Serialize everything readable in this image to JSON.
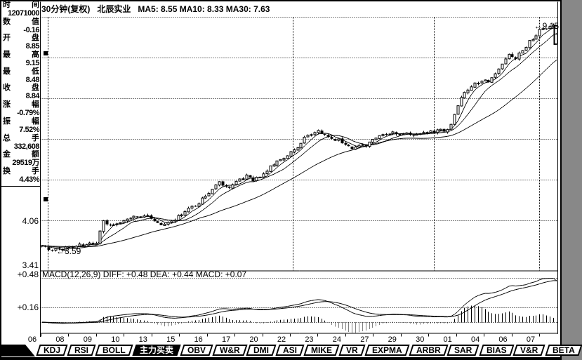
{
  "window": {
    "bg": "#ffffff",
    "fg": "#000000"
  },
  "header": {
    "period": "30分钟(复权)",
    "stock": "北辰实业",
    "ma_values": "MA5: 8.55 MA10: 8.33 MA30: 7.63"
  },
  "sidebar": {
    "rows": [
      {
        "label": "时间",
        "value": "12071000"
      },
      {
        "label": "数值",
        "value": "-0.16"
      },
      {
        "label": "开盘",
        "value": "8.85"
      },
      {
        "label": "最高",
        "value": "9.15"
      },
      {
        "label": "最低",
        "value": "8.48"
      },
      {
        "label": "收盘",
        "value": "8.84"
      },
      {
        "label": "涨幅",
        "value": "-0.79%"
      },
      {
        "label": "振幅",
        "value": "7.52%"
      },
      {
        "label": "总手",
        "value": "332,608"
      },
      {
        "label": "金额",
        "value": "29519万"
      },
      {
        "label": "换手",
        "value": "4.43%"
      }
    ]
  },
  "axis": {
    "price_labels": [
      "4.06",
      "3.41"
    ],
    "macd_labels": [
      "+0.48",
      "+0.16"
    ],
    "x_labels": [
      "06",
      "08",
      "09",
      "10",
      "13",
      "15",
      "16",
      "17",
      "20",
      "22",
      "23",
      "24",
      "27",
      "29",
      "30",
      "01",
      "04",
      "06",
      "07"
    ]
  },
  "annotations": {
    "high_marker": "←9.15",
    "low_marker": "←3.59"
  },
  "macd_panel": {
    "title": "MACD(12,26,9) DIFF: +0.48 DEA: +0.44 MACD: +0.07"
  },
  "tabs": {
    "items": [
      {
        "label": "KDJ",
        "selected": false
      },
      {
        "label": "RSI",
        "selected": false
      },
      {
        "label": "BOLL",
        "selected": false
      },
      {
        "label": "主力买卖",
        "selected": true
      },
      {
        "label": "OBV",
        "selected": false
      },
      {
        "label": "W&R",
        "selected": false
      },
      {
        "label": "DMI",
        "selected": false
      },
      {
        "label": "ASI",
        "selected": false
      },
      {
        "label": "MIKE",
        "selected": false
      },
      {
        "label": "VR",
        "selected": false
      },
      {
        "label": "EXPMA",
        "selected": false
      },
      {
        "label": "ARBR",
        "selected": false
      },
      {
        "label": "SAR",
        "selected": false
      },
      {
        "label": "BIAS",
        "selected": false
      },
      {
        "label": "V&R",
        "selected": false
      },
      {
        "label": "BETA",
        "selected": false
      }
    ]
  },
  "chart_data": {
    "type": "candlestick",
    "title": "北辰实业 30分钟(复权)",
    "period": "30min",
    "price_scale": "log",
    "bars_per_day": 8,
    "day_labels": [
      "06",
      "08",
      "09",
      "10",
      "13",
      "15",
      "16",
      "17",
      "20",
      "22",
      "23",
      "24",
      "27",
      "29",
      "30",
      "01",
      "04",
      "06",
      "07"
    ],
    "visible_range": {
      "low": 3.41,
      "high": 9.15
    },
    "marked_low": {
      "bar": 4,
      "price": 3.59
    },
    "marked_high": {
      "bar": 151,
      "price": 9.15
    },
    "last_bar": {
      "time": "12071000",
      "open": 8.85,
      "high": 9.15,
      "low": 8.48,
      "close": 8.84,
      "change_pct": -0.79,
      "amplitude_pct": 7.52,
      "volume": "332,608",
      "amount": "29519万",
      "turnover_pct": 4.43
    },
    "ma_current": {
      "ma5": 8.55,
      "ma10": 8.33,
      "ma30": 7.63
    },
    "macd_current": {
      "params": [
        12,
        26,
        9
      ],
      "diff": 0.48,
      "dea": 0.44,
      "macd": 0.07
    },
    "close_anchors": [
      [
        0,
        3.68
      ],
      [
        2,
        3.62
      ],
      [
        4,
        3.61
      ],
      [
        7,
        3.65
      ],
      [
        10,
        3.67
      ],
      [
        14,
        3.7
      ],
      [
        16,
        3.74
      ],
      [
        18,
        4.08
      ],
      [
        20,
        4.0
      ],
      [
        23,
        4.05
      ],
      [
        26,
        4.12
      ],
      [
        31,
        4.18
      ],
      [
        33,
        4.05
      ],
      [
        36,
        4.02
      ],
      [
        39,
        4.1
      ],
      [
        43,
        4.28
      ],
      [
        47,
        4.45
      ],
      [
        50,
        4.65
      ],
      [
        52,
        4.8
      ],
      [
        54,
        4.68
      ],
      [
        57,
        4.78
      ],
      [
        60,
        4.92
      ],
      [
        62,
        4.85
      ],
      [
        64,
        4.88
      ],
      [
        67,
        5.1
      ],
      [
        69,
        5.22
      ],
      [
        72,
        5.35
      ],
      [
        75,
        5.55
      ],
      [
        78,
        5.8
      ],
      [
        81,
        5.9
      ],
      [
        84,
        5.78
      ],
      [
        88,
        5.65
      ],
      [
        91,
        5.52
      ],
      [
        95,
        5.6
      ],
      [
        99,
        5.78
      ],
      [
        103,
        5.88
      ],
      [
        107,
        5.82
      ],
      [
        111,
        5.85
      ],
      [
        115,
        5.9
      ],
      [
        119,
        5.97
      ],
      [
        120,
        6.05
      ],
      [
        121,
        6.35
      ],
      [
        123,
        6.8
      ],
      [
        125,
        7.05
      ],
      [
        127,
        7.2
      ],
      [
        129,
        7.3
      ],
      [
        131,
        7.22
      ],
      [
        133,
        7.52
      ],
      [
        135,
        7.8
      ],
      [
        137,
        8.1
      ],
      [
        139,
        8.02
      ],
      [
        141,
        8.28
      ],
      [
        143,
        8.55
      ],
      [
        145,
        8.85
      ],
      [
        147,
        9.02
      ],
      [
        149,
        9.08
      ],
      [
        150,
        9.1
      ],
      [
        151,
        8.84
      ]
    ]
  }
}
